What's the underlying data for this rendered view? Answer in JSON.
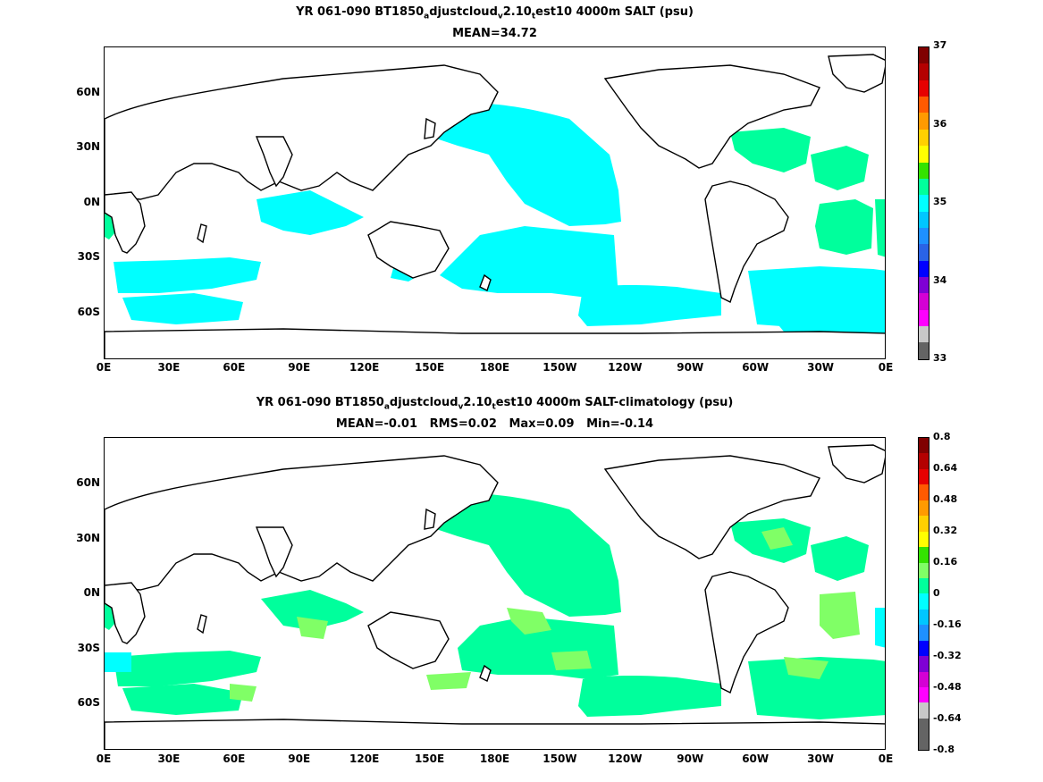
{
  "top": {
    "title_parts": [
      "YR 061-090 BT1850",
      "a",
      "djustcloud",
      "v",
      "2.10",
      "t",
      "est10 4000m SALT (psu)"
    ],
    "subtitle": "MEAN=34.72",
    "lat_labels": [
      "60N",
      "30N",
      "0N",
      "30S",
      "60S"
    ],
    "lon_labels": [
      "0E",
      "30E",
      "60E",
      "90E",
      "120E",
      "150E",
      "180E",
      "150W",
      "120W",
      "90W",
      "60W",
      "30W",
      "0E"
    ],
    "colorbar_ticks": [
      "37",
      "36",
      "35",
      "34",
      "33"
    ],
    "colorbar_colors": [
      "#800000",
      "#b40000",
      "#e60000",
      "#ff5a00",
      "#ff9a00",
      "#ffd000",
      "#ffff00",
      "#34e300",
      "#00ff9c",
      "#00ffff",
      "#00c6ff",
      "#1e90ff",
      "#2a63e6",
      "#0000ff",
      "#7f00d4",
      "#d400d4",
      "#ff00ff",
      "#c8c8c8",
      "#646464"
    ],
    "fields": {
      "cyan": "#00ffff",
      "green": "#00ff9c"
    }
  },
  "bottom": {
    "title_parts": [
      "YR 061-090 BT1850",
      "a",
      "djustcloud",
      "v",
      "2.10",
      "t",
      "est10 4000m SALT-climatology (psu)"
    ],
    "subtitle": "MEAN=-0.01   RMS=0.02   Max=0.09   Min=-0.14",
    "lat_labels": [
      "60N",
      "30N",
      "0N",
      "30S",
      "60S"
    ],
    "lon_labels": [
      "0E",
      "30E",
      "60E",
      "90E",
      "120E",
      "150E",
      "180E",
      "150W",
      "120W",
      "90W",
      "60W",
      "30W",
      "0E"
    ],
    "colorbar_ticks": [
      "0.8",
      "0.64",
      "0.48",
      "0.32",
      "0.16",
      "0",
      "-0.16",
      "-0.32",
      "-0.48",
      "-0.64",
      "-0.8"
    ],
    "colorbar_colors": [
      "#800000",
      "#b40000",
      "#e60000",
      "#ff5a00",
      "#ff9a00",
      "#ffd000",
      "#ffff00",
      "#34e300",
      "#80ff66",
      "#00ff9c",
      "#00ffff",
      "#00c6ff",
      "#1e90ff",
      "#0000ff",
      "#7f00d4",
      "#d400d4",
      "#ff00ff",
      "#c8c8c8",
      "#646464",
      "#646464"
    ],
    "fields": {
      "green": "#00ff9c",
      "lightgreen": "#80ff66",
      "cyan": "#00ffff"
    }
  }
}
